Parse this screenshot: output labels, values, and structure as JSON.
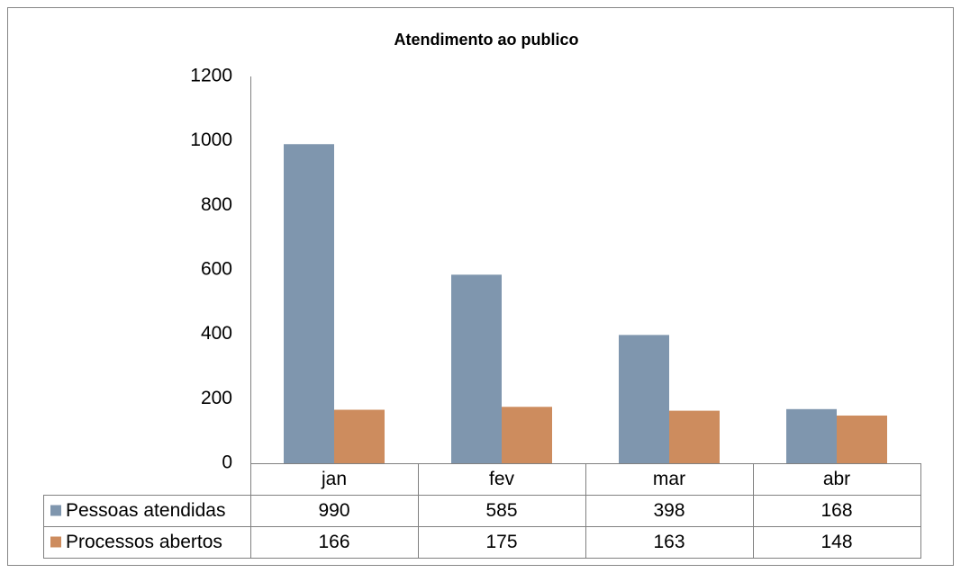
{
  "chart_data": {
    "type": "bar",
    "title": "Atendimento ao publico",
    "categories": [
      "jan",
      "fev",
      "mar",
      "abr"
    ],
    "series": [
      {
        "name": "Pessoas atendidas",
        "color": "#7f96ae",
        "values": [
          990,
          585,
          398,
          168
        ]
      },
      {
        "name": "Processos abertos",
        "color": "#cd8c5e",
        "values": [
          166,
          175,
          163,
          148
        ]
      }
    ],
    "ylim": [
      0,
      1200
    ],
    "yticks": [
      0,
      200,
      400,
      600,
      800,
      1000,
      1200
    ],
    "grid": false,
    "data_table": true
  }
}
